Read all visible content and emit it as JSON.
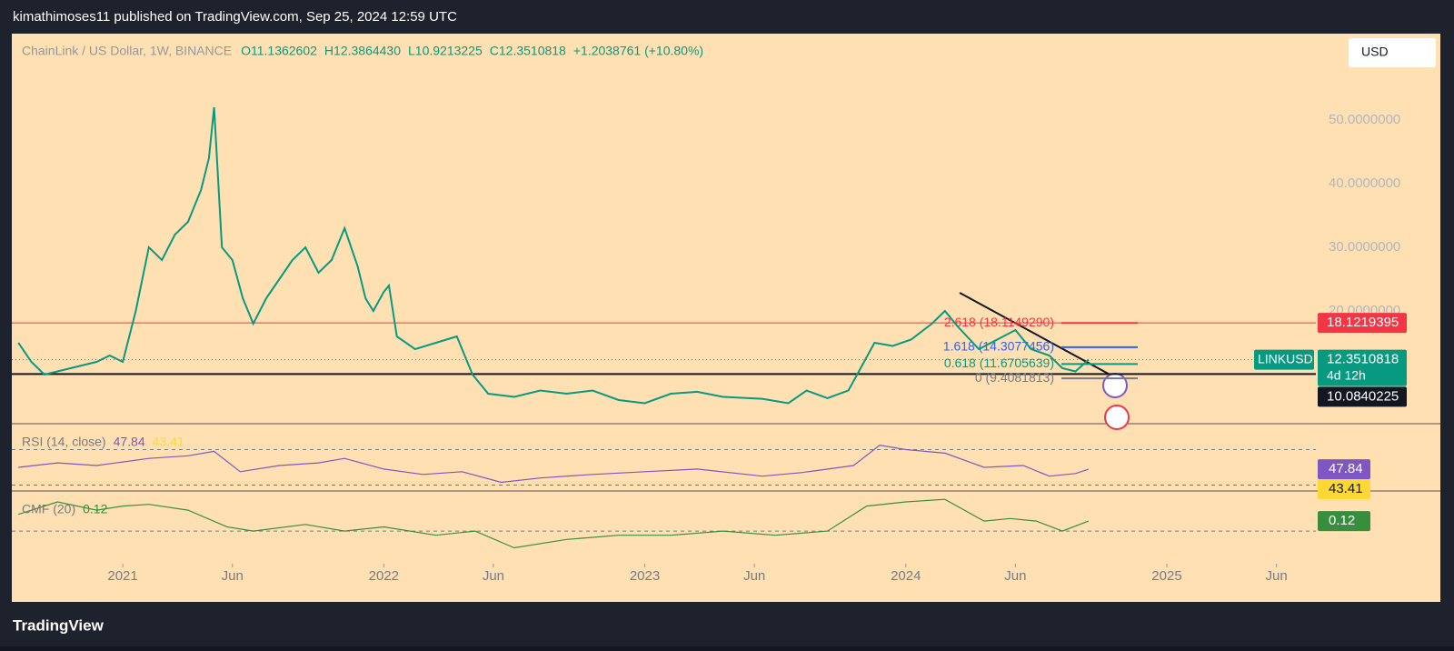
{
  "header": {
    "text": "kimathimoses11 published on TradingView.com, Sep 25, 2024 12:59 UTC"
  },
  "legend": {
    "symbol": "ChainLink / US Dollar, 1W, BINANCE",
    "open": "O11.1362602",
    "high": "H12.3864430",
    "low": "L10.9213225",
    "close": "C12.3510818",
    "change": "+1.2038761 (+10.80%)"
  },
  "currency": "USD",
  "footer": {
    "brand": "TradingView"
  },
  "chart_data": [
    {
      "type": "line",
      "series": [
        {
          "name": "LINKUSD",
          "color": "#089981",
          "x": [
            2020.6,
            2020.65,
            2020.7,
            2020.8,
            2020.9,
            2020.95,
            2021.0,
            2021.05,
            2021.1,
            2021.15,
            2021.2,
            2021.25,
            2021.3,
            2021.33,
            2021.35,
            2021.38,
            2021.42,
            2021.46,
            2021.5,
            2021.55,
            2021.6,
            2021.65,
            2021.7,
            2021.75,
            2021.8,
            2021.85,
            2021.9,
            2021.93,
            2021.96,
            2022.0,
            2022.02,
            2022.05,
            2022.12,
            2022.2,
            2022.28,
            2022.34,
            2022.4,
            2022.5,
            2022.6,
            2022.7,
            2022.8,
            2022.9,
            2023.0,
            2023.1,
            2023.2,
            2023.3,
            2023.45,
            2023.55,
            2023.62,
            2023.7,
            2023.78,
            2023.82,
            2023.88,
            2023.95,
            2024.02,
            2024.1,
            2024.15,
            2024.2,
            2024.28,
            2024.35,
            2024.42,
            2024.48,
            2024.55,
            2024.6,
            2024.65,
            2024.7
          ],
          "values": [
            15,
            12,
            10,
            11,
            12,
            13,
            12,
            20,
            30,
            28,
            32,
            34,
            39,
            44,
            52,
            30,
            28,
            22,
            18,
            22,
            25,
            28,
            30,
            26,
            28,
            33,
            27,
            22,
            20,
            23,
            24,
            16,
            14,
            15,
            16,
            10,
            7,
            6.5,
            7.5,
            7,
            7.5,
            6,
            5.5,
            7,
            7.3,
            6.5,
            6.2,
            5.5,
            7.5,
            6.3,
            7.5,
            10.5,
            15,
            14.5,
            15.5,
            18,
            20,
            17.5,
            14,
            15.5,
            17,
            14,
            13,
            11,
            10.5,
            12.35
          ]
        }
      ],
      "xlim": [
        2020.575,
        2025.571
      ],
      "xticks": [
        2021,
        {
          "value": 2021.42,
          "label": "Jun"
        },
        2022,
        {
          "value": 2022.42,
          "label": "Jun"
        },
        2023,
        {
          "value": 2023.42,
          "label": "Jun"
        },
        2024,
        {
          "value": 2024.42,
          "label": "Jun"
        },
        2025,
        {
          "value": 2025.42,
          "label": "Jun"
        }
      ],
      "ylim": [
        2.29,
        63.57
      ],
      "yticks": [
        {
          "value": 20,
          "label": "20.0000000"
        },
        {
          "value": 30,
          "label": "30.0000000"
        },
        {
          "value": 40,
          "label": "40.0000000"
        },
        {
          "value": 50,
          "label": "50.0000000"
        }
      ],
      "price_lines": [
        {
          "value": 18.1219395,
          "color": "#f23645"
        },
        {
          "value": 10.0840225,
          "color": "#131722"
        }
      ],
      "last_price": {
        "value": 12.3510818,
        "symbol": "LINKUSD",
        "countdown": "4d 12h",
        "color": "#089981"
      },
      "fib_levels": [
        {
          "label": "2.618 (18.1149290)",
          "value": 18.114929,
          "color": "#f23645"
        },
        {
          "label": "1.618 (14.3077456)",
          "value": 14.3077456,
          "color": "#2962ff"
        },
        {
          "label": "0.618 (11.6705639)",
          "value": 11.6705639,
          "color": "#089981"
        },
        {
          "label": "0 (9.4081813)",
          "value": 9.4081813,
          "color": "#787b86"
        }
      ]
    },
    {
      "type": "line",
      "title": "RSI (14, close)",
      "series": [
        {
          "color": "#7e57c2",
          "x": [
            2020.6,
            2020.75,
            2020.9,
            2021.0,
            2021.1,
            2021.25,
            2021.35,
            2021.45,
            2021.6,
            2021.75,
            2021.85,
            2022.0,
            2022.15,
            2022.3,
            2022.45,
            2022.6,
            2022.8,
            2023.0,
            2023.2,
            2023.45,
            2023.6,
            2023.8,
            2023.9,
            2024.0,
            2024.15,
            2024.3,
            2024.45,
            2024.55,
            2024.65,
            2024.7
          ],
          "values": [
            50,
            55,
            52,
            56,
            60,
            63,
            68,
            45,
            52,
            55,
            60,
            48,
            42,
            45,
            33,
            38,
            42,
            45,
            48,
            40,
            44,
            52,
            75,
            70,
            66,
            50,
            52,
            40,
            43,
            47.84
          ]
        }
      ],
      "value": 47.84,
      "ma_value": 43.41,
      "ma_color": "#fdd835",
      "levels": [
        70,
        30
      ],
      "ylim": [
        23.3,
        99.2
      ]
    },
    {
      "type": "line",
      "title": "CMF (20)",
      "series": [
        {
          "color": "#388e3c",
          "x": [
            2020.6,
            2020.75,
            2020.9,
            2021.0,
            2021.1,
            2021.25,
            2021.4,
            2021.5,
            2021.7,
            2021.85,
            2022.0,
            2022.2,
            2022.35,
            2022.5,
            2022.7,
            2022.9,
            2023.1,
            2023.3,
            2023.5,
            2023.7,
            2023.85,
            2024.0,
            2024.15,
            2024.3,
            2024.4,
            2024.5,
            2024.6,
            2024.7
          ],
          "values": [
            0.2,
            0.35,
            0.25,
            0.3,
            0.32,
            0.25,
            0.05,
            0.0,
            0.08,
            0.0,
            0.05,
            -0.05,
            0.0,
            -0.2,
            -0.1,
            -0.05,
            -0.05,
            0.0,
            -0.05,
            0.0,
            0.3,
            0.35,
            0.38,
            0.12,
            0.15,
            0.12,
            0.0,
            0.12
          ]
        }
      ],
      "value": 0.12,
      "levels": [
        0
      ],
      "ylim": [
        -0.39,
        0.48
      ]
    }
  ]
}
